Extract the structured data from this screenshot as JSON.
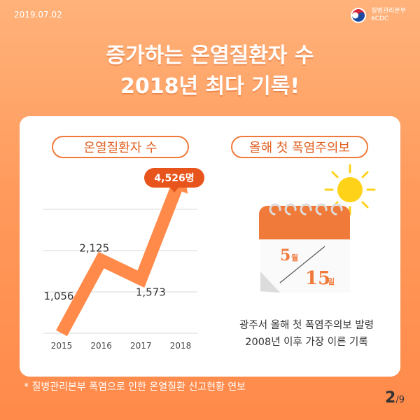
{
  "header": {
    "date": "2019.07.02",
    "org_name_ko": "질병관리본부",
    "org_name_en": "KCDC"
  },
  "headline": {
    "line1": "증가하는 온열질환자 수",
    "line2": "2018년 최다 기록!"
  },
  "left_panel": {
    "pill_label": "온열질환자 수"
  },
  "right_panel": {
    "pill_label": "올해 첫 폭염주의보",
    "calendar_month": "5",
    "calendar_month_unit": "월",
    "calendar_day": "15",
    "calendar_day_unit": "일",
    "caption_line1": "광주서 올해 첫 폭염주의보 발령",
    "caption_line2": "2008년 이후 가장 이른 기록"
  },
  "chart_data": {
    "type": "line",
    "categories": [
      "2015",
      "2016",
      "2017",
      "2018"
    ],
    "values": [
      1056,
      2125,
      1573,
      4526
    ],
    "value_labels": [
      "1,056",
      "2,125",
      "1,573",
      "4,526명"
    ],
    "highlight_index": 3,
    "title": "",
    "xlabel": "",
    "ylabel": "",
    "ylim": [
      0,
      4800
    ],
    "grid": true
  },
  "footer": {
    "footnote": "* 질병관리본부 폭염으로 인한 온열질환 신고현황 연보",
    "page_current": "2",
    "page_total": "/9"
  },
  "colors": {
    "accent": "#f07a3a",
    "arrow": "#ff8a4a",
    "badge": "#e8551c",
    "sun": "#ffd21a"
  }
}
